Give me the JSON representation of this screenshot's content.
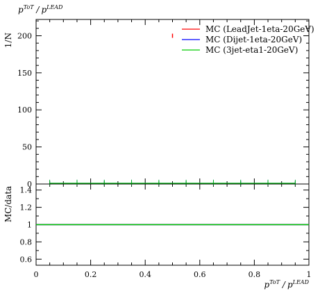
{
  "chart_data": [
    {
      "type": "line",
      "panel": "main",
      "title": "",
      "title_parts": {
        "p": "p",
        "sup": "ToT",
        "sep": "/",
        "p2": "p",
        "sup2": "LEAD",
        "sub": "T",
        "sub2": "T"
      },
      "ylabel": "1/N",
      "ylim": [
        0,
        222
      ],
      "y_ticks": [
        "0",
        "50",
        "100",
        "150",
        "200"
      ],
      "y_tick_values": [
        0,
        50,
        100,
        150,
        200
      ],
      "grid": false,
      "legend_position": "top-right",
      "series": [
        {
          "name": "MC (LeadJet-1eta-20GeV)",
          "color": "#ff0000",
          "x": [
            0.5
          ],
          "y": [
            200
          ]
        },
        {
          "name": "MC (Dijet-1eta-20GeV)",
          "color": "#0000ff",
          "x": [
            0.05,
            0.15,
            0.25,
            0.35,
            0.45,
            0.55,
            0.65,
            0.75,
            0.85,
            0.95
          ],
          "y": [
            1,
            1,
            1,
            1,
            1,
            1,
            1,
            1,
            1,
            1
          ]
        },
        {
          "name": "MC (3jet-eta1-20GeV)",
          "color": "#00cc00",
          "x": [
            0.05,
            0.15,
            0.25,
            0.35,
            0.45,
            0.55,
            0.65,
            0.75,
            0.85,
            0.95
          ],
          "y": [
            1,
            1,
            1,
            1,
            1,
            1,
            1,
            1,
            1,
            1
          ]
        }
      ]
    },
    {
      "type": "line",
      "panel": "ratio",
      "ylabel": "MC/data",
      "xlabel_parts": {
        "p": "p",
        "sup": "ToT",
        "sep": "/",
        "p2": "p",
        "sup2": "LEAD",
        "sub": "T",
        "sub2": "T"
      },
      "ylim": [
        0.53,
        1.47
      ],
      "xlim": [
        0,
        1
      ],
      "y_ticks": [
        "0.6",
        "0.8",
        "1",
        "1.2",
        "1.4"
      ],
      "y_tick_values": [
        0.6,
        0.8,
        1.0,
        1.2,
        1.4
      ],
      "x_ticks": [
        "0",
        "0.2",
        "0.4",
        "0.6",
        "0.8",
        "1"
      ],
      "x_tick_values": [
        0,
        0.2,
        0.4,
        0.6,
        0.8,
        1.0
      ],
      "series": [
        {
          "name": "MC (LeadJet-1eta-20GeV)",
          "color": "#ff0000",
          "x": [
            0,
            1
          ],
          "y": [
            1,
            1
          ]
        },
        {
          "name": "MC (Dijet-1eta-20GeV)",
          "color": "#0000ff",
          "x": [
            0,
            1
          ],
          "y": [
            1,
            1
          ]
        },
        {
          "name": "MC (3jet-eta1-20GeV)",
          "color": "#00cc00",
          "x": [
            0,
            1
          ],
          "y": [
            1,
            1
          ]
        }
      ]
    }
  ]
}
